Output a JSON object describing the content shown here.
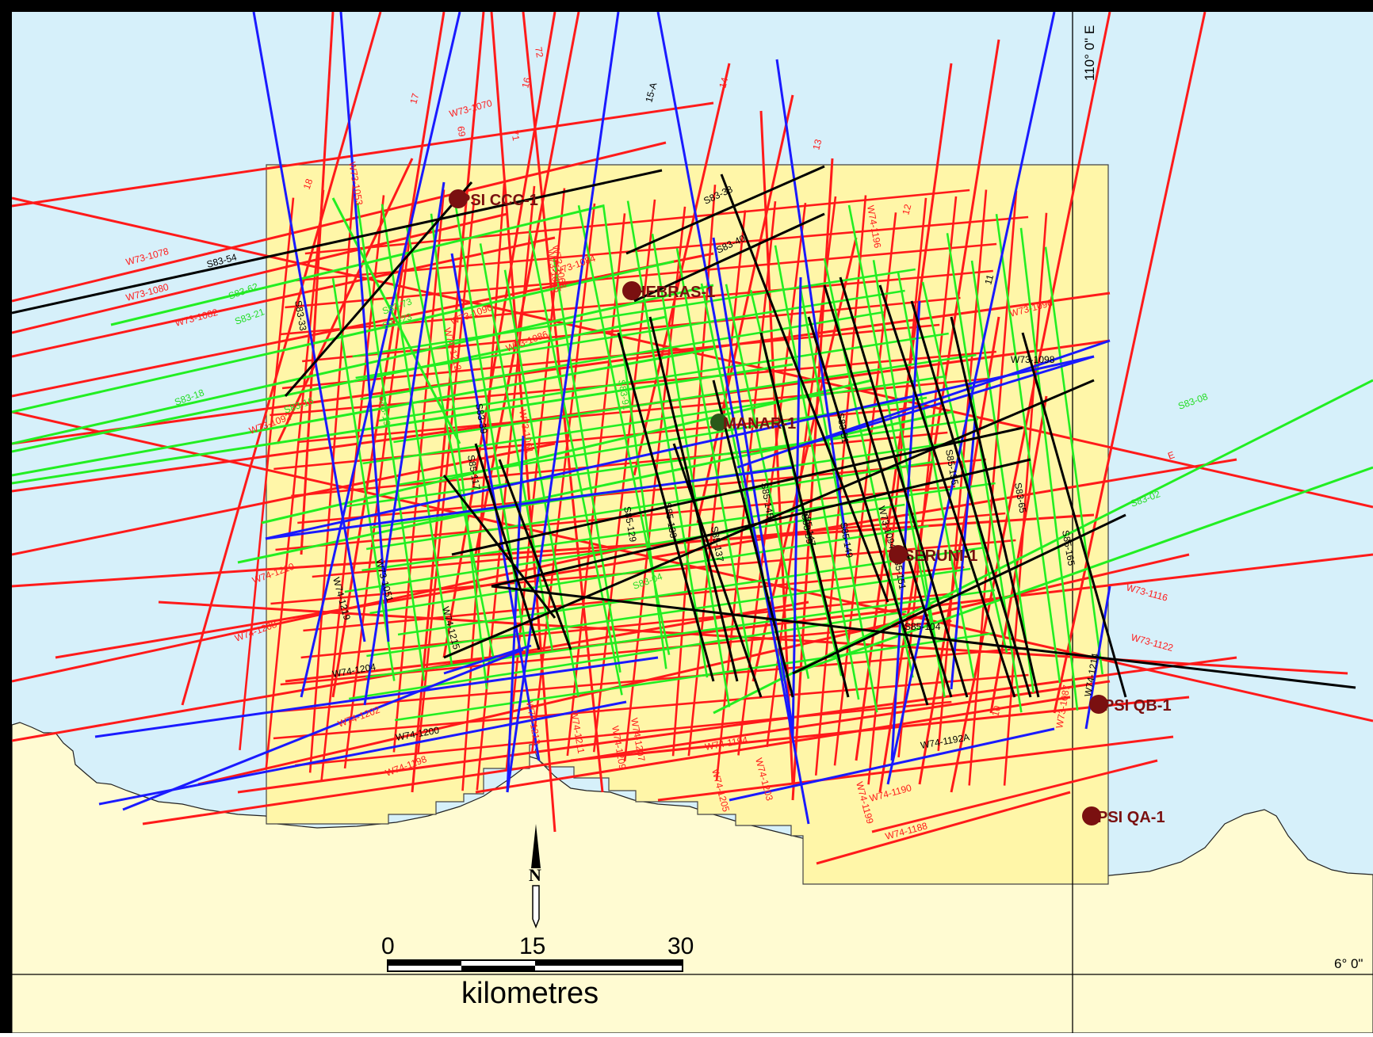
{
  "colors": {
    "sea": "#d6f0fa",
    "land": "#fffbd2",
    "block": "#fff6a8",
    "red_lines": "#ff1a1a",
    "green_lines": "#22ee22",
    "blue_lines": "#1a1aff",
    "black_lines": "#000000",
    "wells": "#7a1010"
  },
  "graticule": {
    "longitude_label": "110° 0\" E",
    "latitude_label": "6° 0\""
  },
  "wells": [
    {
      "name": "PSI CCC-1"
    },
    {
      "name": "HEBRAS-1"
    },
    {
      "name": "MANAR-1"
    },
    {
      "name": "SERUNI-1"
    },
    {
      "name": "PSI QB-1"
    },
    {
      "name": "PSI QA-1"
    }
  ],
  "line_labels": {
    "red": [
      "W73-1070",
      "W73-1078",
      "W73-1080",
      "W73-1082",
      "W73-1092",
      "W73-1096",
      "W73-1116",
      "W73-1122",
      "W73-1087",
      "W73-1084",
      "W73-1086",
      "W73-1090",
      "W73-1053",
      "W73-1055",
      "W73-1061",
      "W73-1063",
      "W74-1210",
      "W74-1208",
      "W74-1202",
      "W74-1198",
      "W74-1190",
      "W74-1188",
      "W74-1209",
      "W74-1207",
      "W74-1211",
      "W74-1213",
      "W74-1194",
      "W74-1203",
      "W74-1205",
      "W74-1199",
      "W74-1196",
      "W74-1212",
      "18",
      "17",
      "16",
      "14",
      "13",
      "12",
      "72",
      "71",
      "69",
      "10",
      "E"
    ],
    "green": [
      "S83-62",
      "S83-21",
      "S83-73",
      "S83-23",
      "S83-18",
      "S83-16",
      "S83-08",
      "S83-02",
      "S83-19",
      "S83-91",
      "S83-04"
    ],
    "blue": [
      "15-A",
      "11",
      "W73-1098",
      "W73-1051",
      "W74-1219",
      "W74-1215",
      "W74-1204",
      "W74-1200",
      "W74-1192A",
      "W74-1214"
    ],
    "black": [
      "S83-54",
      "S83-38",
      "S83-40",
      "S83-33",
      "S83-39",
      "S85-117",
      "S85-129",
      "S85-133",
      "S85-137",
      "S85-145",
      "S85-147",
      "S85-149",
      "S85-151",
      "S83-59",
      "S83-51",
      "S83-65",
      "S85-155",
      "S85-165",
      "S85-104",
      "W73-1094"
    ]
  },
  "north_arrow": {
    "label": "N"
  },
  "scale_bar": {
    "ticks": [
      "0",
      "15",
      "30"
    ],
    "unit": "kilometres"
  }
}
